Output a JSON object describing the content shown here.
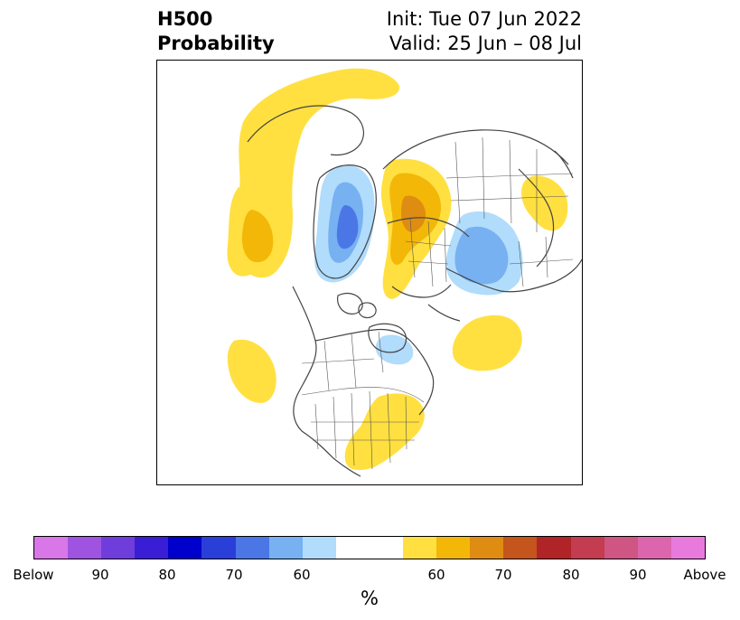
{
  "header": {
    "title_line1": "H500",
    "title_line2": "Probability",
    "init_text": "Init: Tue 07 Jun 2022",
    "valid_text": "Valid: 25 Jun – 08 Jul"
  },
  "colorbar": {
    "colors": [
      "#d977e8",
      "#9e54e0",
      "#6f3ddb",
      "#3a1ed6",
      "#0000cc",
      "#2a3fd8",
      "#4b77e6",
      "#77b1f2",
      "#b1dcfb",
      "#ffffff",
      "#ffe040",
      "#f3b708",
      "#df8c12",
      "#c4551d",
      "#b02427",
      "#c43c50",
      "#cf5582",
      "#dc66ad",
      "#e87ade"
    ],
    "tick_labels": [
      "Below",
      "90",
      "80",
      "70",
      "60",
      "60",
      "70",
      "80",
      "90",
      "Above"
    ],
    "units": "%"
  },
  "map": {
    "land_border_color": "#444444",
    "below_colors": {
      "p50": "#b1dcfb",
      "p60": "#77b1f2",
      "p70": "#4b77e6"
    },
    "above_colors": {
      "p50": "#ffe040",
      "p60": "#f3b708",
      "p70": "#df8c12"
    }
  }
}
